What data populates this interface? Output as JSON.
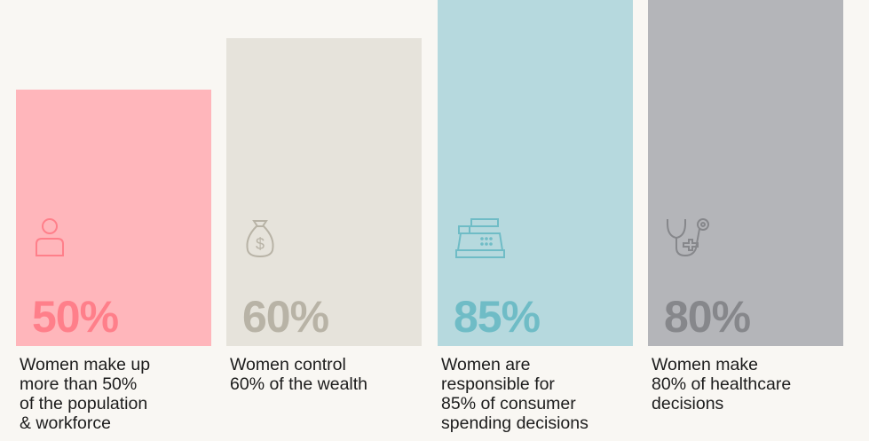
{
  "chart_data": {
    "type": "bar",
    "categories": [
      "Women make up\nmore than 50%\nof the population\n& workforce",
      "Women control\n60% of the wealth",
      "Women are\nresponsible for\n85% of consumer\nspending decisions",
      "Women make\n80% of healthcare\ndecisions"
    ],
    "values": [
      50,
      60,
      85,
      80
    ],
    "value_labels": [
      "50%",
      "60%",
      "85%",
      "80%"
    ],
    "icons": [
      "person-icon",
      "money-bag-icon",
      "cash-register-icon",
      "stethoscope-icon"
    ],
    "bar_colors": [
      "#ffb6bb",
      "#e6e3db",
      "#b6d9de",
      "#b4b5b9"
    ],
    "value_colors": [
      "#ff7f8a",
      "#b8b3a6",
      "#6fbcc6",
      "#86878b"
    ],
    "title": "",
    "xlabel": "",
    "ylabel": "",
    "ylim": [
      0,
      100
    ],
    "grid": false,
    "legend": "none"
  }
}
